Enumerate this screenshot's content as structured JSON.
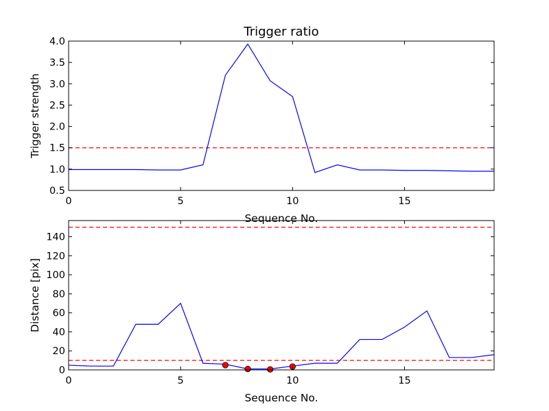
{
  "chart_data": [
    {
      "type": "line",
      "title": "Trigger ratio",
      "xlabel": "Sequence No.",
      "ylabel": "Trigger strength",
      "xlim": [
        0,
        19
      ],
      "ylim": [
        0.5,
        4.0
      ],
      "xticks": [
        "0",
        "5",
        "10",
        "15"
      ],
      "xtick_values": [
        0,
        5,
        10,
        15
      ],
      "yticks": [
        "0.5",
        "1.0",
        "1.5",
        "2.0",
        "2.5",
        "3.0",
        "3.5",
        "4.0"
      ],
      "ytick_values": [
        0.5,
        1.0,
        1.5,
        2.0,
        2.5,
        3.0,
        3.5,
        4.0
      ],
      "series": [
        {
          "color": "#0000ff",
          "x": [
            0,
            1,
            2,
            3,
            4,
            5,
            6,
            7,
            8,
            9,
            10,
            11,
            12,
            13,
            14,
            15,
            16,
            17,
            18,
            19
          ],
          "y": [
            0.99,
            0.99,
            0.99,
            0.99,
            0.98,
            0.98,
            1.1,
            3.2,
            3.93,
            3.07,
            2.7,
            0.92,
            1.1,
            0.98,
            0.98,
            0.97,
            0.97,
            0.96,
            0.95,
            0.95
          ]
        }
      ],
      "threshold_lines": [
        {
          "y": 1.5,
          "color": "#ff0000",
          "style": "dashed"
        }
      ],
      "grid": false
    },
    {
      "type": "line",
      "title": "",
      "xlabel": "Sequence No.",
      "ylabel": "Distance [pix]",
      "xlim": [
        0,
        19
      ],
      "ylim": [
        0,
        157
      ],
      "xticks": [
        "0",
        "5",
        "10",
        "15"
      ],
      "xtick_values": [
        0,
        5,
        10,
        15
      ],
      "yticks": [
        "0",
        "20",
        "40",
        "60",
        "80",
        "100",
        "120",
        "140"
      ],
      "ytick_values": [
        0,
        20,
        40,
        60,
        80,
        100,
        120,
        140
      ],
      "series": [
        {
          "color": "#0000ff",
          "x": [
            0,
            1,
            2,
            3,
            4,
            5,
            6,
            7,
            8,
            9,
            10,
            11,
            12,
            13,
            14,
            15,
            16,
            17,
            18,
            19
          ],
          "y": [
            5,
            4,
            4,
            48,
            48,
            70,
            7,
            6,
            1,
            1,
            4,
            7,
            7,
            32,
            32,
            45,
            62,
            13,
            13,
            16
          ]
        }
      ],
      "markers": {
        "color": "#ff0000",
        "x": [
          7,
          8,
          9,
          10
        ],
        "y": [
          5,
          1,
          0.5,
          3.5
        ]
      },
      "threshold_lines": [
        {
          "y": 150,
          "color": "#ff0000",
          "style": "dashed"
        },
        {
          "y": 10,
          "color": "#ff0000",
          "style": "dashed"
        }
      ],
      "grid": false
    }
  ]
}
